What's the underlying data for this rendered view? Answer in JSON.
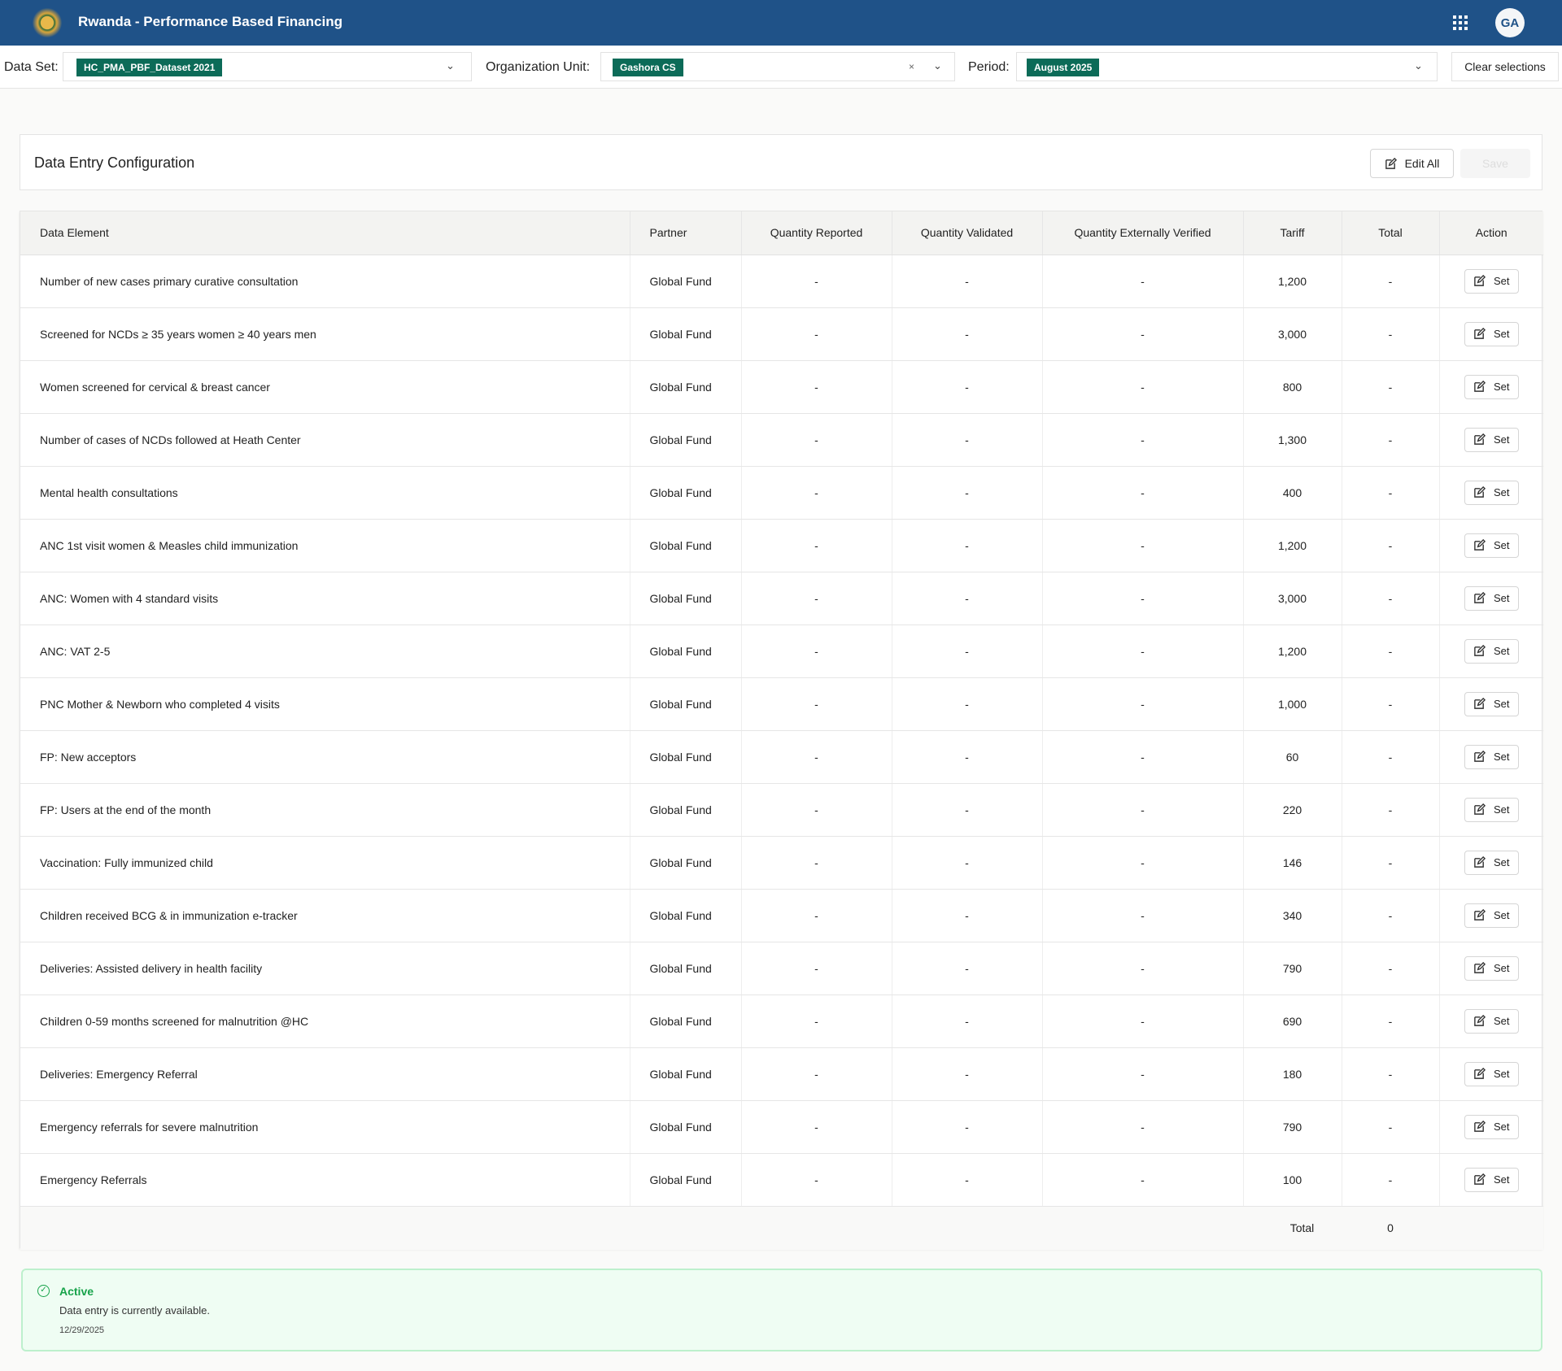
{
  "header": {
    "title": "Rwanda - Performance Based Financing",
    "avatar": "GA"
  },
  "filters": {
    "dataset_label": "Data Set:",
    "dataset_value": "HC_PMA_PBF_Dataset 2021",
    "orgunit_label": "Organization Unit:",
    "orgunit_value": "Gashora CS",
    "clear_x": "×",
    "period_label": "Period:",
    "period_value": "August 2025",
    "clear_label": "Clear selections"
  },
  "card": {
    "title": "Data Entry Configuration",
    "edit_all": "Edit All",
    "save": "Save"
  },
  "table": {
    "columns": [
      "Data Element",
      "Partner",
      "Quantity Reported",
      "Quantity Validated",
      "Quantity Externally Verified",
      "Tariff",
      "Total",
      "Action"
    ],
    "set_label": "Set",
    "rows": [
      {
        "element": "Number of new cases primary curative consultation",
        "partner": "Global Fund",
        "qr": "-",
        "qv": "-",
        "qev": "-",
        "tariff": "1,200",
        "total": "-"
      },
      {
        "element": "Screened for NCDs ≥ 35 years women ≥ 40 years men",
        "partner": "Global Fund",
        "qr": "-",
        "qv": "-",
        "qev": "-",
        "tariff": "3,000",
        "total": "-"
      },
      {
        "element": "Women screened for cervical & breast cancer",
        "partner": "Global Fund",
        "qr": "-",
        "qv": "-",
        "qev": "-",
        "tariff": "800",
        "total": "-"
      },
      {
        "element": "Number of cases of NCDs followed at Heath Center",
        "partner": "Global Fund",
        "qr": "-",
        "qv": "-",
        "qev": "-",
        "tariff": "1,300",
        "total": "-"
      },
      {
        "element": "Mental health consultations",
        "partner": "Global Fund",
        "qr": "-",
        "qv": "-",
        "qev": "-",
        "tariff": "400",
        "total": "-"
      },
      {
        "element": "ANC 1st visit women & Measles child immunization",
        "partner": "Global Fund",
        "qr": "-",
        "qv": "-",
        "qev": "-",
        "tariff": "1,200",
        "total": "-"
      },
      {
        "element": "ANC: Women with 4 standard visits",
        "partner": "Global Fund",
        "qr": "-",
        "qv": "-",
        "qev": "-",
        "tariff": "3,000",
        "total": "-"
      },
      {
        "element": "ANC: VAT 2-5",
        "partner": "Global Fund",
        "qr": "-",
        "qv": "-",
        "qev": "-",
        "tariff": "1,200",
        "total": "-"
      },
      {
        "element": "PNC Mother & Newborn who completed 4 visits",
        "partner": "Global Fund",
        "qr": "-",
        "qv": "-",
        "qev": "-",
        "tariff": "1,000",
        "total": "-"
      },
      {
        "element": "FP: New acceptors",
        "partner": "Global Fund",
        "qr": "-",
        "qv": "-",
        "qev": "-",
        "tariff": "60",
        "total": "-"
      },
      {
        "element": "FP: Users at the end of the month",
        "partner": "Global Fund",
        "qr": "-",
        "qv": "-",
        "qev": "-",
        "tariff": "220",
        "total": "-"
      },
      {
        "element": "Vaccination: Fully immunized child",
        "partner": "Global Fund",
        "qr": "-",
        "qv": "-",
        "qev": "-",
        "tariff": "146",
        "total": "-"
      },
      {
        "element": "Children received BCG & in immunization e-tracker",
        "partner": "Global Fund",
        "qr": "-",
        "qv": "-",
        "qev": "-",
        "tariff": "340",
        "total": "-"
      },
      {
        "element": "Deliveries: Assisted delivery in health facility",
        "partner": "Global Fund",
        "qr": "-",
        "qv": "-",
        "qev": "-",
        "tariff": "790",
        "total": "-"
      },
      {
        "element": "Children 0-59 months screened for malnutrition @HC",
        "partner": "Global Fund",
        "qr": "-",
        "qv": "-",
        "qev": "-",
        "tariff": "690",
        "total": "-"
      },
      {
        "element": "Deliveries: Emergency Referral",
        "partner": "Global Fund",
        "qr": "-",
        "qv": "-",
        "qev": "-",
        "tariff": "180",
        "total": "-"
      },
      {
        "element": "Emergency referrals for severe malnutrition",
        "partner": "Global Fund",
        "qr": "-",
        "qv": "-",
        "qev": "-",
        "tariff": "790",
        "total": "-"
      },
      {
        "element": "Emergency Referrals",
        "partner": "Global Fund",
        "qr": "-",
        "qv": "-",
        "qev": "-",
        "tariff": "100",
        "total": "-"
      }
    ],
    "footer": {
      "label": "Total",
      "value": "0"
    }
  },
  "status": {
    "title": "Active",
    "message": "Data entry is currently available.",
    "date": "12/29/2025",
    "color": "#17a34a"
  }
}
